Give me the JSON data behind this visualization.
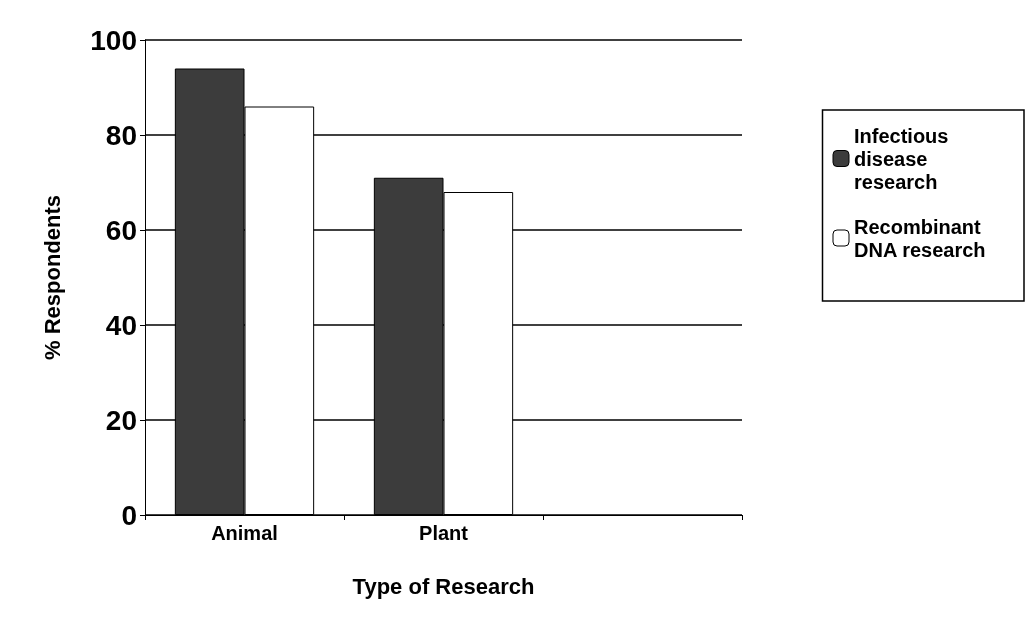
{
  "chart_data": {
    "type": "bar",
    "xlabel": "Type of Research",
    "ylabel": "% Respondents",
    "categories": [
      "Animal",
      "Plant",
      null
    ],
    "series": [
      {
        "name": "Infectious disease research",
        "color": "#3c3c3c",
        "values": [
          94,
          71,
          null
        ]
      },
      {
        "name": "Recombinant DNA research",
        "color": "#ffffff",
        "values": [
          86,
          68,
          null
        ]
      }
    ],
    "ylim": [
      0,
      100
    ],
    "yticks": [
      0,
      20,
      40,
      60,
      80,
      100
    ],
    "grid": "y",
    "legend": "right"
  }
}
